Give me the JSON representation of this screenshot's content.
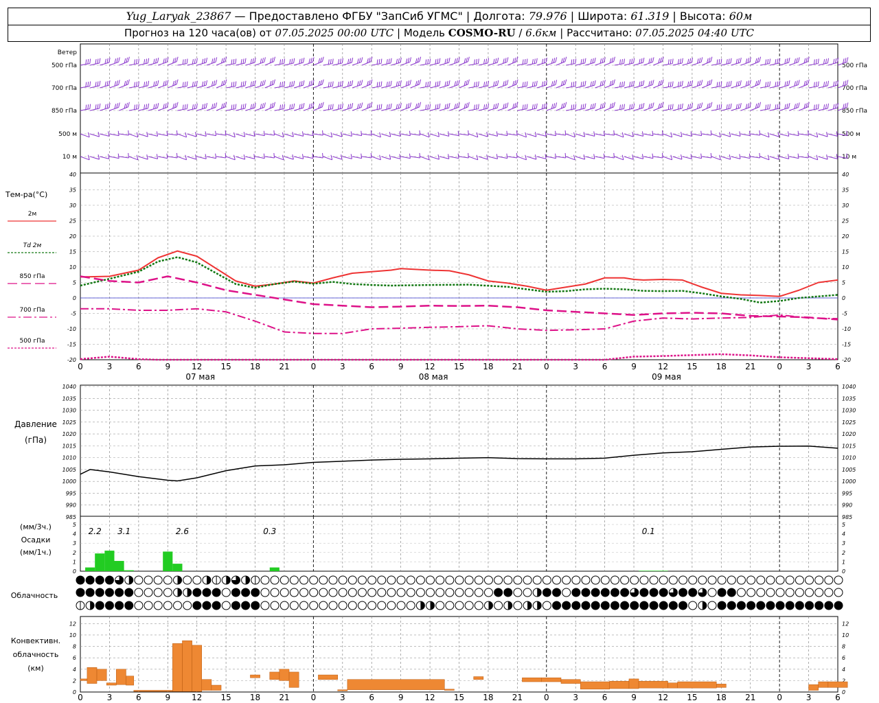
{
  "header": {
    "station": "Yug_Laryak_23867",
    "provider": "Предоставлено ФГБУ \"ЗапСиб УГМС\"",
    "lon_label": "Долгота:",
    "lon": "79.976",
    "lat_label": "Широта:",
    "lat": "61.319",
    "alt_label": "Высота:",
    "alt": "60м",
    "forecast_label": "Прогноз на 120 часа(ов) от",
    "forecast_from": "07.05.2025 00:00 UTC",
    "model_label": "Модель",
    "model": "COSMO-RU",
    "resolution": "6.6км",
    "computed_label": "Рассчитано:",
    "computed": "07.05.2025 04:40 UTC"
  },
  "colors": {
    "t2m": "#ee3333",
    "td2m": "#117711",
    "t850": "#dd1188",
    "t700": "#dd1188",
    "t500": "#dd1188",
    "pressure": "#000000",
    "precip": "#22cc22",
    "convective": "#ee8833",
    "wind": "#8833cc",
    "zero_line": "#3333cc"
  },
  "chart_data": [
    {
      "name": "wind",
      "type": "barbs",
      "title": "Ветер",
      "levels": [
        "500 гПа",
        "700 гПа",
        "850 гПа",
        "500 м",
        "10 м"
      ],
      "x_hours": [
        0,
        54
      ],
      "note_level": ""
    },
    {
      "name": "temperature",
      "type": "line",
      "title": "Тем-ра(°C)",
      "legend": [
        "2м",
        "Td 2м",
        "850 гПа",
        "700 гПа",
        "500 гПа"
      ],
      "ylim": [
        -20,
        40
      ],
      "yticks": [
        -20,
        -15,
        -10,
        -5,
        0,
        5,
        10,
        15,
        20,
        25,
        30,
        35,
        40
      ],
      "x_ticks": [
        "0",
        "3",
        "6",
        "9",
        "12",
        "15",
        "18",
        "21",
        "0",
        "3",
        "6",
        "9",
        "12",
        "15",
        "18",
        "21",
        "0",
        "3",
        "6",
        "9",
        "12",
        "15",
        "18",
        "21",
        "0",
        "3",
        "6"
      ],
      "day_labels": [
        "07 мая",
        "08 мая",
        "09 мая"
      ],
      "series": [
        {
          "name": "2м",
          "x": [
            0,
            3,
            6,
            8,
            10,
            12,
            14,
            16,
            18,
            20,
            22,
            24,
            26,
            28,
            30,
            32,
            33,
            36,
            38,
            40,
            42,
            44,
            46,
            48,
            50,
            52,
            54,
            56,
            57,
            58,
            60,
            62,
            64,
            66,
            68,
            70,
            72,
            74,
            76,
            78
          ],
          "y": [
            6.8,
            7,
            9,
            13,
            15.2,
            13.5,
            9.5,
            5.5,
            3.8,
            4.5,
            5.5,
            4.8,
            6.5,
            8,
            8.5,
            9,
            9.5,
            9,
            8.8,
            7.5,
            5.5,
            4.8,
            3.8,
            2.5,
            3.5,
            4.5,
            6.5,
            6.5,
            6,
            5.8,
            6,
            5.8,
            3.5,
            1.5,
            1,
            0.8,
            0.5,
            2.5,
            5,
            5.8
          ]
        },
        {
          "name": "Td 2м",
          "x": [
            0,
            3,
            6,
            8,
            10,
            12,
            14,
            16,
            18,
            20,
            22,
            24,
            26,
            28,
            30,
            32,
            36,
            40,
            44,
            46,
            48,
            50,
            52,
            54,
            56,
            58,
            60,
            62,
            64,
            66,
            68,
            70,
            72,
            74,
            76,
            78
          ],
          "y": [
            4,
            6.2,
            8.5,
            11.8,
            13.2,
            11.5,
            8,
            4.5,
            3.3,
            4.5,
            5.3,
            4.6,
            5.2,
            4.5,
            4.2,
            4,
            4.2,
            4.3,
            3.6,
            2.8,
            2,
            2.2,
            2.8,
            3,
            2.8,
            2.3,
            2.2,
            2.3,
            1.5,
            0.5,
            -0.3,
            -1.5,
            -1,
            0,
            0.5,
            1
          ]
        },
        {
          "name": "850 гПа",
          "x": [
            0,
            3,
            6,
            9,
            12,
            15,
            18,
            21,
            24,
            27,
            30,
            33,
            36,
            39,
            42,
            45,
            48,
            51,
            54,
            57,
            60,
            63,
            66,
            69,
            72,
            75,
            78
          ],
          "y": [
            7,
            5.5,
            5,
            7,
            5,
            2.5,
            1,
            -0.5,
            -2,
            -2.5,
            -3,
            -2.8,
            -2.5,
            -2.6,
            -2.5,
            -3,
            -4,
            -4.5,
            -5,
            -5.5,
            -5,
            -4.8,
            -5,
            -5.8,
            -6,
            -6.3,
            -7
          ]
        },
        {
          "name": "700 гПа",
          "x": [
            0,
            3,
            6,
            9,
            12,
            15,
            18,
            21,
            24,
            27,
            30,
            33,
            36,
            39,
            42,
            45,
            48,
            51,
            54,
            57,
            60,
            63,
            66,
            69,
            72,
            75,
            78
          ],
          "y": [
            -3.5,
            -3.5,
            -4,
            -4,
            -3.5,
            -4.5,
            -7.5,
            -11,
            -11.5,
            -11.5,
            -10,
            -9.8,
            -9.5,
            -9.3,
            -9,
            -10,
            -10.5,
            -10.3,
            -10,
            -7.5,
            -6.5,
            -6.8,
            -6.5,
            -6.3,
            -5.5,
            -6.5,
            -6.7
          ]
        },
        {
          "name": "500 гПа",
          "x": [
            0,
            3,
            6,
            8,
            54,
            57,
            60,
            63,
            66,
            69,
            72,
            75,
            78
          ],
          "y": [
            -19.8,
            -19,
            -19.8,
            -20,
            -20,
            -19,
            -18.8,
            -18.5,
            -18.2,
            -18.6,
            -19.2,
            -19.5,
            -19.8
          ]
        }
      ]
    },
    {
      "name": "pressure",
      "type": "line",
      "title": "Давление",
      "ylabel": "(гПа)",
      "ylim": [
        985,
        1040
      ],
      "yticks": [
        985,
        990,
        995,
        1000,
        1005,
        1010,
        1015,
        1020,
        1025,
        1030,
        1035,
        1040
      ],
      "series": [
        {
          "name": "pressure",
          "x": [
            0,
            1,
            3,
            6,
            9,
            10,
            12,
            15,
            18,
            21,
            24,
            27,
            30,
            33,
            36,
            39,
            42,
            45,
            48,
            51,
            54,
            57,
            60,
            63,
            66,
            69,
            72,
            75,
            78
          ],
          "y": [
            1003,
            1005,
            1004,
            1002,
            1000.5,
            1000.2,
            1001.5,
            1004.5,
            1006.5,
            1007,
            1008,
            1008.5,
            1009,
            1009.3,
            1009.5,
            1009.8,
            1010,
            1009.6,
            1009.5,
            1009.5,
            1009.8,
            1011,
            1012,
            1012.5,
            1013.5,
            1014.5,
            1014.8,
            1014.9,
            1014
          ]
        }
      ]
    },
    {
      "name": "precipitation",
      "type": "bar",
      "title": "Осадки",
      "ylabel_3h": "(мм/3ч.)",
      "ylabel_1h": "(мм/1ч.)",
      "ylim": [
        0,
        5
      ],
      "yticks": [
        0,
        1,
        2,
        3,
        4,
        5
      ],
      "labels": [
        {
          "x": 1.5,
          "text": "2.2"
        },
        {
          "x": 4.5,
          "text": "3.1"
        },
        {
          "x": 10.5,
          "text": "2.6"
        },
        {
          "x": 19.5,
          "text": "0.3"
        },
        {
          "x": 58.5,
          "text": "0.1"
        }
      ],
      "bars": [
        {
          "x": 1,
          "value": 0.4
        },
        {
          "x": 2,
          "value": 1.9
        },
        {
          "x": 3,
          "value": 2.2
        },
        {
          "x": 4,
          "value": 1.1
        },
        {
          "x": 5,
          "value": 0.1
        },
        {
          "x": 9,
          "value": 2.1
        },
        {
          "x": 10,
          "value": 0.8
        },
        {
          "x": 20,
          "value": 0.4
        },
        {
          "x": 58,
          "value": 0.05
        },
        {
          "x": 59,
          "value": 0.05
        },
        {
          "x": 60,
          "value": 0.05
        }
      ]
    },
    {
      "name": "cloudiness",
      "type": "table",
      "title": "Облачность",
      "rows": [
        "4444320000200212321000000000000000000000000000000000000000000000000000000000000000000000002000000000000000001010000000020000000000000000002000000000000000012000000000000000000",
        "4444440000224440444000000000000000000000000440024404444443444344304400000000000000000000000000000000000000000000000000000000000000000000000000000000000000000000000000000000000",
        "1244440000004440444000000000000000022000002020220444444444444440204444444444444444444444444444444444444444404440000000000000000000000000000000000000000000000000000000000004444"
      ]
    },
    {
      "name": "convective",
      "type": "bar",
      "title": "Конвективн. облачность",
      "ylabel": "(км)",
      "ylim": [
        0,
        13
      ],
      "yticks": [
        0,
        2,
        4,
        6,
        8,
        10,
        12
      ],
      "bars": [
        {
          "x0": 0,
          "x1": 0.7,
          "base": 2,
          "top": 2.3
        },
        {
          "x0": 0.7,
          "x1": 1.7,
          "base": 1.5,
          "top": 4.3
        },
        {
          "x0": 1.7,
          "x1": 2.7,
          "base": 2,
          "top": 4
        },
        {
          "x0": 2.7,
          "x1": 3.7,
          "base": 1.2,
          "top": 1.6
        },
        {
          "x0": 3.7,
          "x1": 4.7,
          "base": 1.3,
          "top": 4
        },
        {
          "x0": 4.7,
          "x1": 5.5,
          "base": 1.2,
          "top": 2.8
        },
        {
          "x0": 5.5,
          "x1": 9.5,
          "base": 0.1,
          "top": 0.3
        },
        {
          "x0": 9.5,
          "x1": 10.5,
          "base": 0.1,
          "top": 8.5
        },
        {
          "x0": 10.5,
          "x1": 11.5,
          "base": 0.1,
          "top": 9
        },
        {
          "x0": 11.5,
          "x1": 12.5,
          "base": 0.1,
          "top": 8.2
        },
        {
          "x0": 12.5,
          "x1": 13.5,
          "base": 0.3,
          "top": 2.2
        },
        {
          "x0": 13.5,
          "x1": 14.5,
          "base": 0.3,
          "top": 1.2
        },
        {
          "x0": 17.5,
          "x1": 18.5,
          "base": 2.5,
          "top": 3
        },
        {
          "x0": 19.5,
          "x1": 20.5,
          "base": 2.2,
          "top": 3.5
        },
        {
          "x0": 20.5,
          "x1": 21.5,
          "base": 2,
          "top": 4
        },
        {
          "x0": 21.5,
          "x1": 22.5,
          "base": 0.8,
          "top": 3.5
        },
        {
          "x0": 24.5,
          "x1": 26.5,
          "base": 2.2,
          "top": 3
        },
        {
          "x0": 26.5,
          "x1": 27.5,
          "base": 0.2,
          "top": 0.4
        },
        {
          "x0": 27.5,
          "x1": 37.5,
          "base": 0.4,
          "top": 2.2
        },
        {
          "x0": 37.5,
          "x1": 38.5,
          "base": 0.3,
          "top": 0.5
        },
        {
          "x0": 40.5,
          "x1": 41.5,
          "base": 2.2,
          "top": 2.7
        },
        {
          "x0": 45.5,
          "x1": 47.5,
          "base": 1.8,
          "top": 2.5
        },
        {
          "x0": 47.5,
          "x1": 49.5,
          "base": 1.8,
          "top": 2.5
        },
        {
          "x0": 49.5,
          "x1": 51.5,
          "base": 1.5,
          "top": 2.2
        },
        {
          "x0": 51.5,
          "x1": 54.5,
          "base": 0.5,
          "top": 1.8
        },
        {
          "x0": 54.5,
          "x1": 56.5,
          "base": 0.6,
          "top": 1.9
        },
        {
          "x0": 56.5,
          "x1": 57.5,
          "base": 0.6,
          "top": 2.3
        },
        {
          "x0": 57.5,
          "x1": 60.5,
          "base": 0.7,
          "top": 1.9
        },
        {
          "x0": 60.5,
          "x1": 61.5,
          "base": 0.7,
          "top": 1.6
        },
        {
          "x0": 61.5,
          "x1": 65.5,
          "base": 0.7,
          "top": 1.8
        },
        {
          "x0": 65.5,
          "x1": 66.5,
          "base": 0.8,
          "top": 1.4
        },
        {
          "x0": 75,
          "x1": 76,
          "base": 0.3,
          "top": 1.3
        },
        {
          "x0": 76,
          "x1": 77,
          "base": 0.8,
          "top": 1.8
        },
        {
          "x0": 77,
          "x1": 79,
          "base": 0.8,
          "top": 1.8
        }
      ]
    }
  ]
}
